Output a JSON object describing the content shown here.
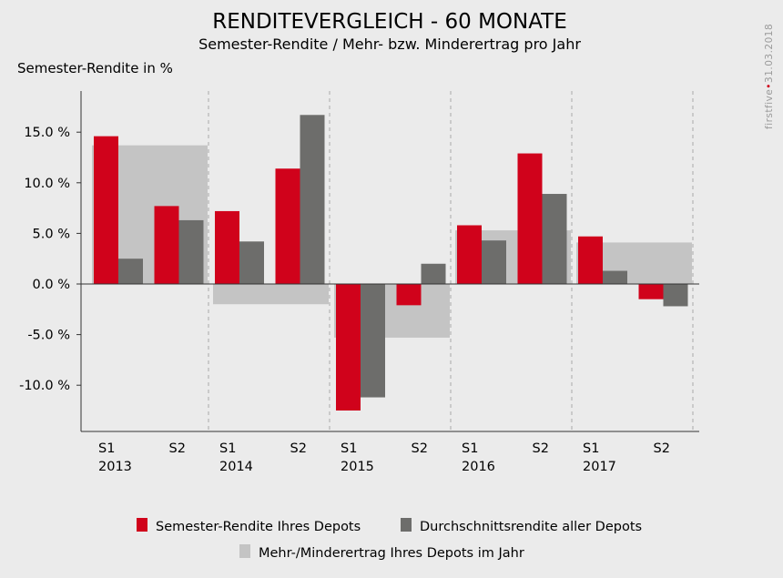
{
  "chart_data": {
    "type": "bar",
    "title": "RENDITEVERGLEICH - 60 MONATE",
    "subtitle": "Semester-Rendite / Mehr- bzw. Minderertrag pro Jahr",
    "ylabel": "Semester-Rendite in %",
    "ylim": [
      -14.5,
      18.5
    ],
    "yticks": [
      "15.0 %",
      "10.0 %",
      "5.0 %",
      "0.0 %",
      "-5.0 %",
      "-10.0 %"
    ],
    "ytick_values": [
      15,
      10,
      5,
      0,
      -5,
      -10
    ],
    "grid": "vertical dashed separators between years",
    "years": [
      "2013",
      "2014",
      "2015",
      "2016",
      "2017"
    ],
    "semesters": [
      "S1",
      "S2"
    ],
    "categories": [
      "S1 2013",
      "S2 2013",
      "S1 2014",
      "S2 2014",
      "S1 2015",
      "S2 2015",
      "S1 2016",
      "S2 2016",
      "S1 2017",
      "S2 2017"
    ],
    "series": [
      {
        "name": "Semester-Rendite Ihres Depots",
        "color": "#d0021b",
        "values": [
          14.6,
          7.7,
          7.2,
          11.4,
          -12.5,
          -2.1,
          5.8,
          12.9,
          4.7,
          -1.5
        ]
      },
      {
        "name": "Durchschnittsrendite aller Depots",
        "color": "#6d6d6b",
        "values": [
          2.5,
          6.3,
          4.2,
          16.7,
          -11.2,
          2.0,
          4.3,
          8.9,
          1.3,
          -2.2
        ]
      }
    ],
    "yearly": {
      "name": "Mehr-/Minderertrag Ihres Depots im Jahr",
      "color": "#c4c4c4",
      "values": [
        13.7,
        -2.0,
        -5.3,
        5.3,
        4.1
      ]
    },
    "legend_position": "bottom"
  },
  "watermark": {
    "brand": "firstfive",
    "date": "31.03.2018",
    "brand_color": "#9a9a9a",
    "dot_color": "#d0021b"
  }
}
